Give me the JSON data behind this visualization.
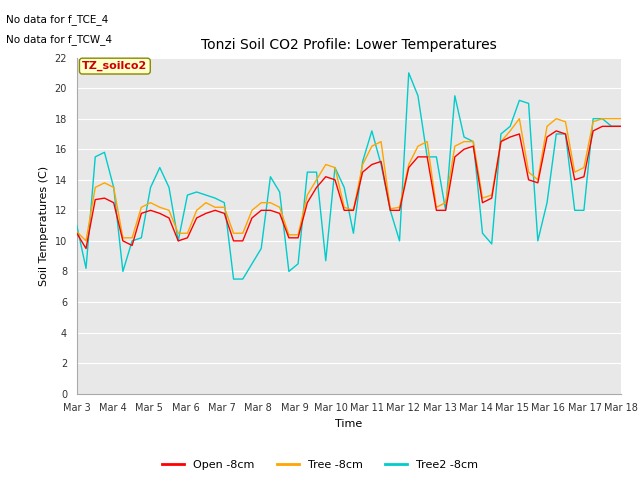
{
  "title": "Tonzi Soil CO2 Profile: Lower Temperatures",
  "xlabel": "Time",
  "ylabel": "Soil Temperatures (C)",
  "annotation1": "No data for f_TCE_4",
  "annotation2": "No data for f_TCW_4",
  "soilco2_label": "TZ_soilco2",
  "ylim": [
    0,
    22
  ],
  "yticks": [
    0,
    2,
    4,
    6,
    8,
    10,
    12,
    14,
    16,
    18,
    20,
    22
  ],
  "xtick_labels": [
    "Mar 3",
    "Mar 4",
    "Mar 5",
    "Mar 6",
    "Mar 7",
    "Mar 8",
    "Mar 9",
    "Mar 10",
    "Mar 11",
    "Mar 12",
    "Mar 13",
    "Mar 14",
    "Mar 15",
    "Mar 16",
    "Mar 17",
    "Mar 18"
  ],
  "legend_labels": [
    "Open -8cm",
    "Tree -8cm",
    "Tree2 -8cm"
  ],
  "legend_colors": [
    "#ff0000",
    "#ffa500",
    "#00cccc"
  ],
  "bg_color": "#e8e8e8",
  "fig_bg": "#ffffff",
  "open_data": [
    10.5,
    9.5,
    12.7,
    12.8,
    12.5,
    10.0,
    9.7,
    11.8,
    12.0,
    11.8,
    11.5,
    10.0,
    10.2,
    11.5,
    11.8,
    12.0,
    11.8,
    10.0,
    10.0,
    11.5,
    12.0,
    12.0,
    11.8,
    10.2,
    10.2,
    12.5,
    13.5,
    14.2,
    14.0,
    12.0,
    12.0,
    14.5,
    15.0,
    15.2,
    12.0,
    12.0,
    14.8,
    15.5,
    15.5,
    12.0,
    12.0,
    15.5,
    16.0,
    16.2,
    12.5,
    12.8,
    16.5,
    16.8,
    17.0,
    14.0,
    13.8,
    16.8,
    17.2,
    17.0,
    14.0,
    14.2,
    17.2,
    17.5,
    17.5,
    17.5
  ],
  "tree_data": [
    10.6,
    10.0,
    13.5,
    13.8,
    13.5,
    10.2,
    10.2,
    12.2,
    12.5,
    12.2,
    12.0,
    10.5,
    10.5,
    12.0,
    12.5,
    12.2,
    12.2,
    10.5,
    10.5,
    12.0,
    12.5,
    12.5,
    12.2,
    10.4,
    10.4,
    13.0,
    14.0,
    15.0,
    14.8,
    12.2,
    12.0,
    15.0,
    16.2,
    16.5,
    12.1,
    12.2,
    15.0,
    16.2,
    16.5,
    12.2,
    12.5,
    16.2,
    16.5,
    16.5,
    12.8,
    13.0,
    16.5,
    17.2,
    18.0,
    14.5,
    14.0,
    17.5,
    18.0,
    17.8,
    14.5,
    14.8,
    17.8,
    18.0,
    18.0,
    18.0
  ],
  "tree2_data": [
    11.0,
    8.2,
    15.5,
    15.8,
    13.5,
    8.0,
    10.0,
    10.2,
    13.5,
    14.8,
    13.5,
    10.0,
    13.0,
    13.2,
    13.0,
    12.8,
    12.5,
    7.5,
    7.5,
    8.5,
    9.5,
    14.2,
    13.2,
    8.0,
    8.5,
    14.5,
    14.5,
    8.7,
    14.8,
    13.5,
    10.5,
    15.2,
    17.2,
    15.0,
    12.0,
    10.0,
    21.0,
    19.5,
    15.5,
    15.5,
    12.0,
    19.5,
    16.8,
    16.5,
    10.5,
    9.8,
    17.0,
    17.5,
    19.2,
    19.0,
    10.0,
    12.5,
    17.0,
    17.0,
    12.0,
    12.0,
    18.0,
    18.0,
    17.5,
    17.5
  ]
}
